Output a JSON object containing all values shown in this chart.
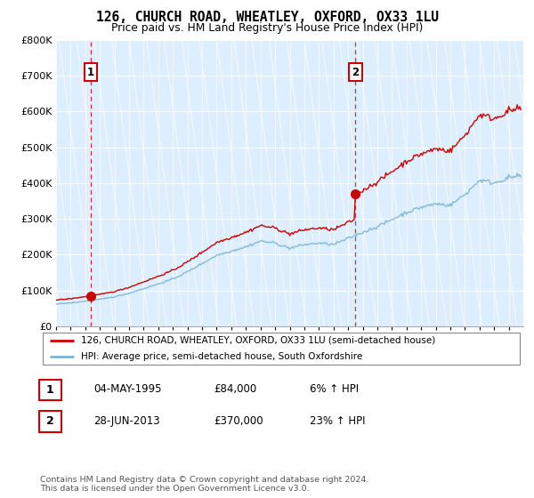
{
  "title1": "126, CHURCH ROAD, WHEATLEY, OXFORD, OX33 1LU",
  "title2": "Price paid vs. HM Land Registry's House Price Index (HPI)",
  "ylim": [
    0,
    800000
  ],
  "yticks": [
    0,
    100000,
    200000,
    300000,
    400000,
    500000,
    600000,
    700000,
    800000
  ],
  "ytick_labels": [
    "£0",
    "£100K",
    "£200K",
    "£300K",
    "£400K",
    "£500K",
    "£600K",
    "£700K",
    "£800K"
  ],
  "xlim_start": 1993.0,
  "xlim_end": 2025.0,
  "sale1_date": 1995.37,
  "sale1_price": 84000,
  "sale2_date": 2013.49,
  "sale2_price": 370000,
  "hpi_color": "#7ab4d8",
  "price_color": "#cc0000",
  "bg_color": "#ddeeff",
  "grid_color": "#c8d8e8",
  "legend_line1": "126, CHURCH ROAD, WHEATLEY, OXFORD, OX33 1LU (semi-detached house)",
  "legend_line2": "HPI: Average price, semi-detached house, South Oxfordshire",
  "table_row1": [
    "1",
    "04-MAY-1995",
    "£84,000",
    "6% ↑ HPI"
  ],
  "table_row2": [
    "2",
    "28-JUN-2013",
    "£370,000",
    "23% ↑ HPI"
  ],
  "footnote": "Contains HM Land Registry data © Crown copyright and database right 2024.\nThis data is licensed under the Open Government Licence v3.0."
}
